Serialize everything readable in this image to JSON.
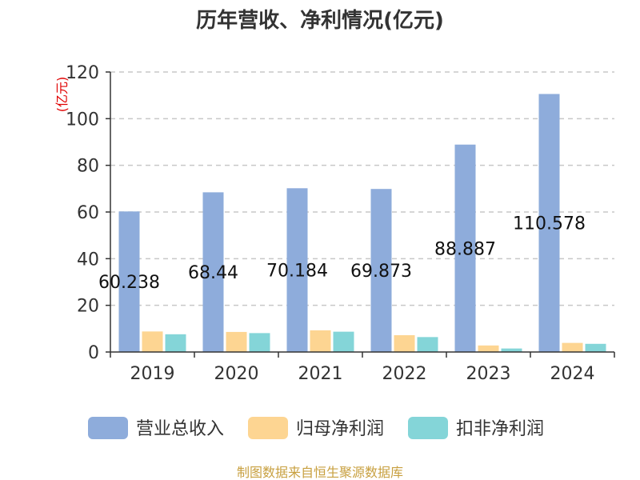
{
  "chart_data": {
    "type": "bar",
    "title": "历年营收、净利情况(亿元)",
    "ylabel": "(亿元)",
    "categories": [
      "2019",
      "2020",
      "2021",
      "2022",
      "2023",
      "2024"
    ],
    "ylim": [
      0,
      120
    ],
    "yticks": [
      0,
      20,
      40,
      60,
      80,
      100,
      120
    ],
    "grid": true,
    "legend_position": "bottom",
    "series": [
      {
        "name": "营业总收入",
        "color": "#8eacdb",
        "values": [
          60.238,
          68.44,
          70.184,
          69.873,
          88.887,
          110.578
        ],
        "show_labels": true
      },
      {
        "name": "归母净利润",
        "color": "#fdd592",
        "values": [
          8.8,
          8.6,
          9.3,
          7.2,
          2.8,
          3.9
        ],
        "show_labels": false
      },
      {
        "name": "扣非净利润",
        "color": "#84d5d8",
        "values": [
          7.6,
          8.1,
          8.7,
          6.4,
          1.5,
          3.5
        ],
        "show_labels": false
      }
    ],
    "data_labels": [
      "60.238",
      "68.44",
      "70.184",
      "69.873",
      "88.887",
      "110.578"
    ],
    "source": "制图数据来自恒生聚源数据库"
  }
}
